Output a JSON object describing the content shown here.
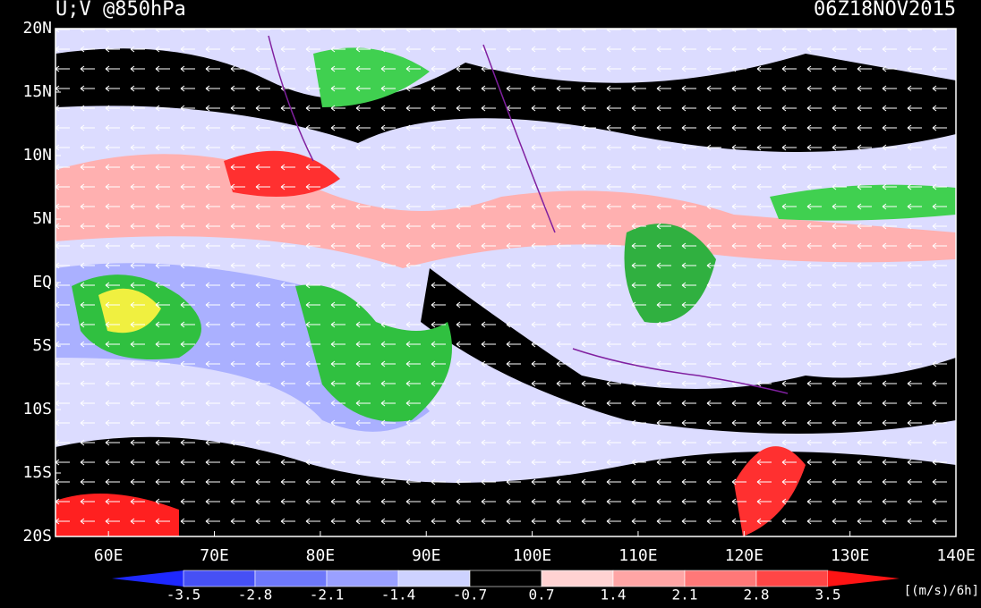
{
  "header": {
    "title": "U;V @850hPa",
    "time": "06Z18NOV2015"
  },
  "map": {
    "lon_range": [
      55,
      140
    ],
    "lat_range": [
      20,
      -20
    ],
    "lat_ticks": [
      {
        "value": 20,
        "label": "20N"
      },
      {
        "value": 15,
        "label": "15N"
      },
      {
        "value": 10,
        "label": "10N"
      },
      {
        "value": 5,
        "label": "5N"
      },
      {
        "value": 0,
        "label": "EQ"
      },
      {
        "value": -5,
        "label": "5S"
      },
      {
        "value": -10,
        "label": "10S"
      },
      {
        "value": -15,
        "label": "15S"
      },
      {
        "value": -20,
        "label": "20S"
      }
    ],
    "lon_ticks": [
      {
        "value": 60,
        "label": "60E"
      },
      {
        "value": 70,
        "label": "70E"
      },
      {
        "value": 80,
        "label": "80E"
      },
      {
        "value": 90,
        "label": "90E"
      },
      {
        "value": 100,
        "label": "100E"
      },
      {
        "value": 110,
        "label": "110E"
      },
      {
        "value": 120,
        "label": "120E"
      },
      {
        "value": 130,
        "label": "130E"
      },
      {
        "value": 140,
        "label": "140E"
      }
    ]
  },
  "colorbar": {
    "levels": [
      -3.5,
      -2.8,
      -2.1,
      -1.4,
      -0.7,
      0.7,
      1.4,
      2.1,
      2.8,
      3.5
    ],
    "colors": [
      "#1e28ff",
      "#4650f5",
      "#6e78fa",
      "#9aa0ff",
      "#cdd2ff",
      "#000000",
      "#ffd2d2",
      "#ffa5a5",
      "#ff7878",
      "#ff4646",
      "#ff1414"
    ],
    "unit": "[(m/s)/6h]"
  }
}
